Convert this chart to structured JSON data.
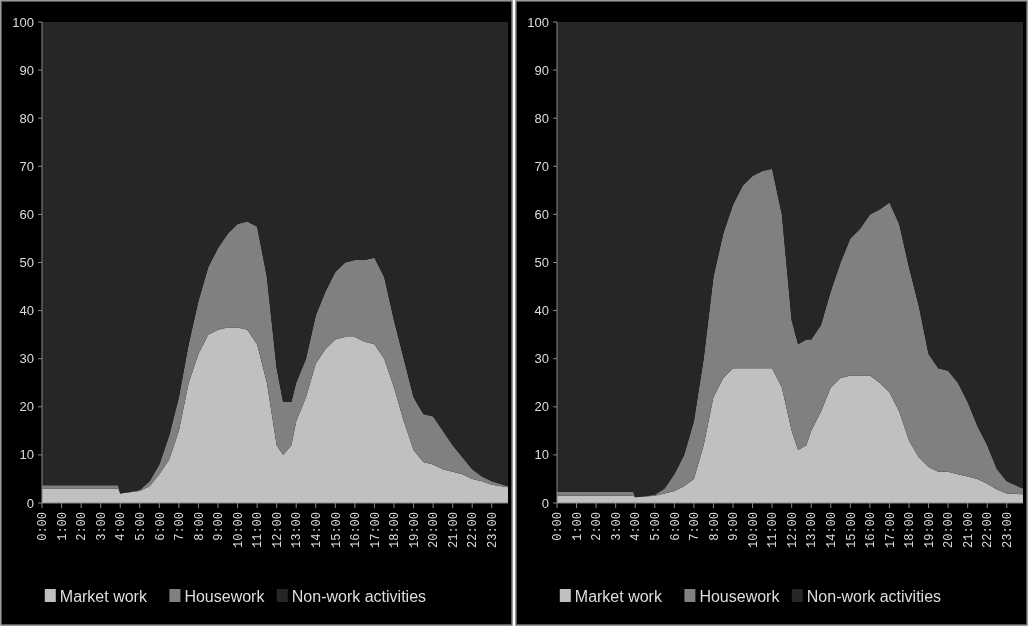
{
  "chart_data": [
    {
      "type": "area",
      "stacked": true,
      "legend": "bottom",
      "x": [
        0,
        3.9,
        4,
        5,
        5.5,
        6,
        6.5,
        7,
        7.5,
        8,
        8.5,
        9,
        9.5,
        10,
        10.5,
        11,
        11.5,
        12,
        12.33,
        12.75,
        13,
        13.5,
        14,
        14.5,
        15,
        15.5,
        16,
        16.5,
        17,
        17.5,
        18,
        18.5,
        19,
        19.5,
        20,
        20.5,
        21,
        21.5,
        22,
        22.5,
        23,
        23.83
      ],
      "xlim": [
        0,
        23.83
      ],
      "ylim": [
        0,
        100
      ],
      "yticks": [
        0,
        10,
        20,
        30,
        40,
        50,
        60,
        70,
        80,
        90,
        100
      ],
      "xticks": [
        {
          "value": 0,
          "label": "0:00"
        },
        {
          "value": 1,
          "label": "1:00"
        },
        {
          "value": 2,
          "label": "2:00"
        },
        {
          "value": 3,
          "label": "3:00"
        },
        {
          "value": 4,
          "label": "4:00"
        },
        {
          "value": 5,
          "label": "5:00"
        },
        {
          "value": 6,
          "label": "6:00"
        },
        {
          "value": 7,
          "label": "7:00"
        },
        {
          "value": 8,
          "label": "8:00"
        },
        {
          "value": 9,
          "label": "9:00"
        },
        {
          "value": 10,
          "label": "10:00"
        },
        {
          "value": 11,
          "label": "11:00"
        },
        {
          "value": 12,
          "label": "12:00"
        },
        {
          "value": 13,
          "label": "13:00"
        },
        {
          "value": 14,
          "label": "14:00"
        },
        {
          "value": 15,
          "label": "15:00"
        },
        {
          "value": 16,
          "label": "16:00"
        },
        {
          "value": 17,
          "label": "17:00"
        },
        {
          "value": 18,
          "label": "18:00"
        },
        {
          "value": 19,
          "label": "19:00"
        },
        {
          "value": 20,
          "label": "20:00"
        },
        {
          "value": 21,
          "label": "21:00"
        },
        {
          "value": 22,
          "label": "22:00"
        },
        {
          "value": 23,
          "label": "23:00"
        }
      ],
      "series": [
        {
          "name": "Market work",
          "color": "#c0c0c0",
          "values": [
            3,
            3,
            2,
            2.5,
            3.5,
            6,
            9,
            15,
            25,
            31,
            35,
            36,
            36.5,
            36.5,
            36,
            33,
            25,
            12,
            10,
            12,
            17,
            22,
            29,
            32,
            34,
            34.5,
            34.5,
            33.5,
            33,
            30,
            24,
            17,
            11,
            8.5,
            8,
            7,
            6.5,
            6,
            5,
            4.5,
            3.8,
            3.3
          ]
        },
        {
          "name": "Housework",
          "color": "#808080",
          "values": [
            0.7,
            0.7,
            0,
            0.2,
            1,
            2,
            5,
            7,
            8,
            11,
            14,
            17,
            19.5,
            21.5,
            22.5,
            24.5,
            22,
            16,
            11,
            9,
            8,
            8,
            10,
            12,
            14,
            15.5,
            16,
            17,
            18,
            17,
            14,
            13,
            11,
            10,
            10,
            8,
            5.5,
            3.5,
            2,
            1,
            0.7,
            0.2
          ]
        },
        {
          "name": "Non-work activities",
          "color": "#262626",
          "values": [
            96.3,
            96.3,
            98,
            97.3,
            95.5,
            92,
            86,
            78,
            67,
            58,
            51,
            47,
            44,
            42,
            41.5,
            42.5,
            53,
            72,
            79,
            79,
            75,
            70,
            61,
            56,
            52,
            50,
            49.5,
            49.5,
            49,
            53,
            62,
            70,
            78,
            81.5,
            82,
            85,
            88,
            90.5,
            93,
            94.5,
            95.5,
            96.5
          ]
        }
      ]
    },
    {
      "type": "area",
      "stacked": true,
      "legend": "bottom",
      "x": [
        0,
        3.9,
        4,
        5,
        5.5,
        6,
        6.5,
        7,
        7.5,
        8,
        8.5,
        9,
        9.5,
        10,
        10.5,
        11,
        11.5,
        12,
        12.33,
        12.75,
        13,
        13.5,
        14,
        14.5,
        15,
        15.5,
        16,
        16.5,
        17,
        17.5,
        18,
        18.5,
        19,
        19.5,
        20,
        20.5,
        21,
        21.5,
        22,
        22.5,
        23,
        23.83
      ],
      "xlim": [
        0,
        23.83
      ],
      "ylim": [
        0,
        100
      ],
      "yticks": [
        0,
        10,
        20,
        30,
        40,
        50,
        60,
        70,
        80,
        90,
        100
      ],
      "xticks": [
        {
          "value": 0,
          "label": "0:00"
        },
        {
          "value": 1,
          "label": "1:00"
        },
        {
          "value": 2,
          "label": "2:00"
        },
        {
          "value": 3,
          "label": "3:00"
        },
        {
          "value": 4,
          "label": "4:00"
        },
        {
          "value": 5,
          "label": "5:00"
        },
        {
          "value": 6,
          "label": "6:00"
        },
        {
          "value": 7,
          "label": "7:00"
        },
        {
          "value": 8,
          "label": "8:00"
        },
        {
          "value": 9,
          "label": "9:00"
        },
        {
          "value": 10,
          "label": "10:00"
        },
        {
          "value": 11,
          "label": "11:00"
        },
        {
          "value": 12,
          "label": "12:00"
        },
        {
          "value": 13,
          "label": "13:00"
        },
        {
          "value": 14,
          "label": "14:00"
        },
        {
          "value": 15,
          "label": "15:00"
        },
        {
          "value": 16,
          "label": "16:00"
        },
        {
          "value": 17,
          "label": "17:00"
        },
        {
          "value": 18,
          "label": "18:00"
        },
        {
          "value": 19,
          "label": "19:00"
        },
        {
          "value": 20,
          "label": "20:00"
        },
        {
          "value": 21,
          "label": "21:00"
        },
        {
          "value": 22,
          "label": "22:00"
        },
        {
          "value": 23,
          "label": "23:00"
        }
      ],
      "series": [
        {
          "name": "Market work",
          "color": "#c0c0c0",
          "values": [
            1.5,
            1.5,
            1.2,
            1.5,
            2,
            2.5,
            3.5,
            5,
            12,
            22,
            26,
            28,
            28,
            28,
            28,
            28,
            24,
            15,
            11,
            12,
            15,
            19,
            24,
            26,
            26.5,
            26.5,
            26.5,
            25,
            23,
            19,
            13,
            9.5,
            7.5,
            6.5,
            6.5,
            6,
            5.5,
            5,
            4,
            2.8,
            2,
            1.8
          ]
        },
        {
          "name": "Housework",
          "color": "#808080",
          "values": [
            0.8,
            0.8,
            0,
            0.2,
            1,
            3.5,
            6.5,
            12,
            18,
            25,
            30,
            34,
            38,
            40,
            41,
            41.5,
            36,
            23,
            22,
            22,
            19,
            18,
            20,
            24,
            28.5,
            30.5,
            33.5,
            36,
            39.5,
            39,
            36,
            31.5,
            23.5,
            21.5,
            21,
            19,
            15.5,
            11,
            8,
            4.2,
            2.5,
            1.2
          ]
        },
        {
          "name": "Non-work activities",
          "color": "#262626",
          "values": [
            97.7,
            97.7,
            98.8,
            98.3,
            97,
            94,
            90,
            83,
            70,
            53,
            44,
            38,
            34,
            32,
            31,
            30.5,
            40,
            62,
            67,
            66,
            66,
            63,
            56,
            50,
            45,
            43,
            40,
            39,
            37.5,
            42,
            51,
            59,
            69,
            72,
            72.5,
            75,
            79,
            84,
            88,
            93,
            95.5,
            97
          ]
        }
      ]
    }
  ]
}
